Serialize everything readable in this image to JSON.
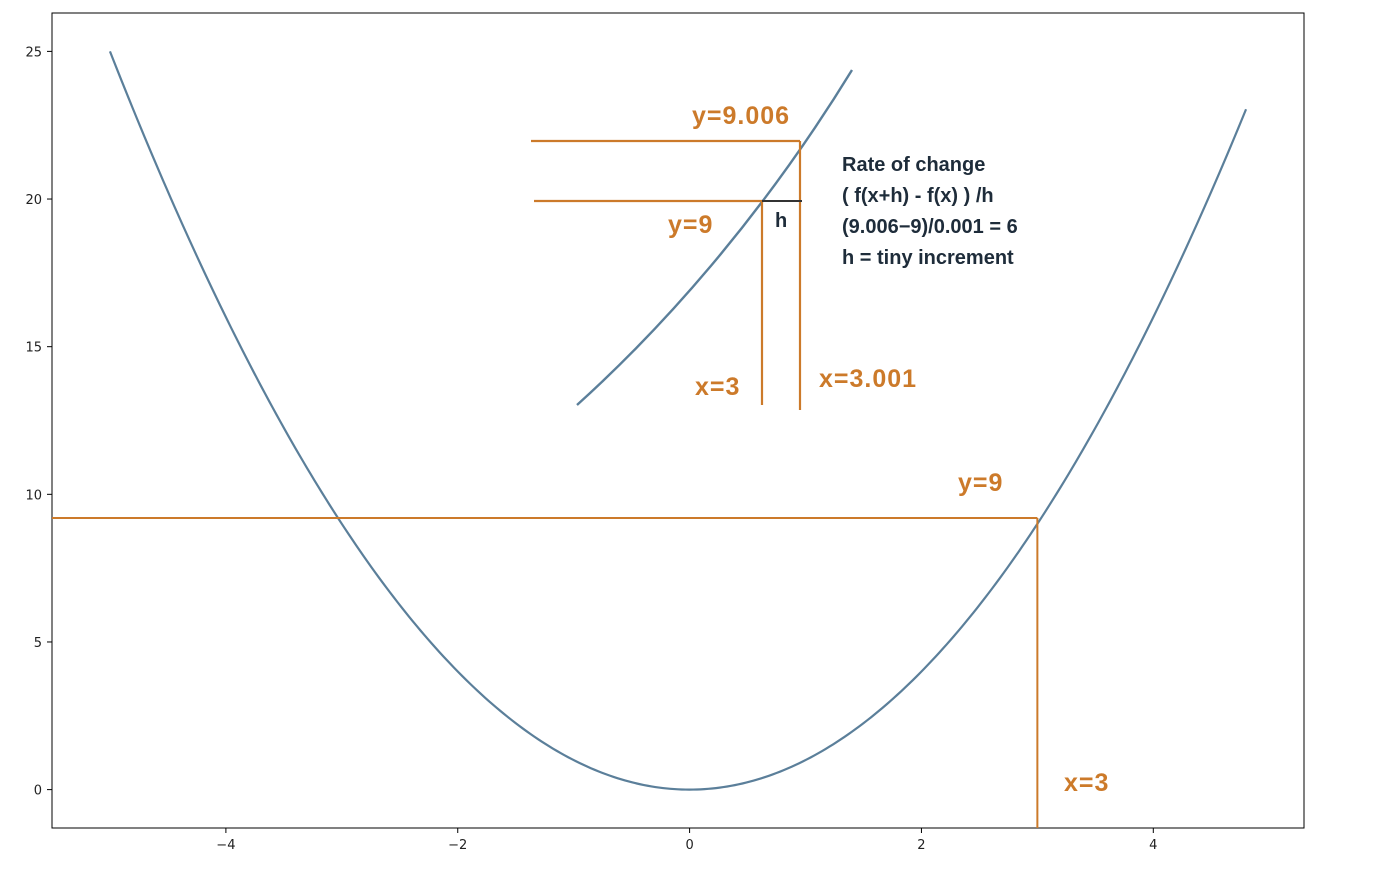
{
  "chart_data": {
    "type": "line",
    "title": "",
    "xlabel": "",
    "ylabel": "",
    "function": "y = x^2",
    "xlim": [
      -5.5,
      5.3
    ],
    "ylim": [
      -1.3,
      26.3
    ],
    "xticks": [
      -4,
      -2,
      0,
      2,
      4
    ],
    "yticks": [
      0,
      5,
      10,
      15,
      20,
      25
    ],
    "xtick_labels": [
      "−4",
      "−2",
      "0",
      "2",
      "4"
    ],
    "ytick_labels": [
      "0",
      "5",
      "10",
      "15",
      "20",
      "25"
    ],
    "grid": false,
    "series": [
      {
        "x_range": [
          -5.0,
          4.8
        ],
        "points": [
          {
            "x": -5.0,
            "y": 25.0
          },
          {
            "x": -4.5,
            "y": 20.25
          },
          {
            "x": -4.0,
            "y": 16.0
          },
          {
            "x": -3.5,
            "y": 12.25
          },
          {
            "x": -3.0,
            "y": 9.0
          },
          {
            "x": -2.5,
            "y": 6.25
          },
          {
            "x": -2.0,
            "y": 4.0
          },
          {
            "x": -1.5,
            "y": 2.25
          },
          {
            "x": -1.0,
            "y": 1.0
          },
          {
            "x": -0.5,
            "y": 0.25
          },
          {
            "x": 0.0,
            "y": 0.0
          },
          {
            "x": 0.5,
            "y": 0.25
          },
          {
            "x": 1.0,
            "y": 1.0
          },
          {
            "x": 1.5,
            "y": 2.25
          },
          {
            "x": 2.0,
            "y": 4.0
          },
          {
            "x": 2.5,
            "y": 6.25
          },
          {
            "x": 3.0,
            "y": 9.0
          },
          {
            "x": 3.5,
            "y": 12.25
          },
          {
            "x": 4.0,
            "y": 16.0
          },
          {
            "x": 4.5,
            "y": 20.25
          },
          {
            "x": 4.8,
            "y": 23.04
          }
        ]
      }
    ],
    "annotations": {
      "main_y_label": "y=9",
      "main_x_label": "x=3",
      "zoom_y_upper_label": "y=9.006",
      "zoom_y_lower_label": "y=9",
      "zoom_x_left_label": "x=3",
      "zoom_x_right_label": "x=3.001",
      "zoom_h_label": "h",
      "rate_lines": [
        "Rate of change",
        "( f(x+h) - f(x) ) /h",
        "(9.006−9)/0.001 = 6",
        "h = tiny increment"
      ]
    },
    "colors": {
      "curve": "#5b7f9a",
      "guide": "#cc7a2a",
      "text_dark": "#1e2c3a",
      "frame": "#000000",
      "h_segment": "#333333"
    }
  }
}
